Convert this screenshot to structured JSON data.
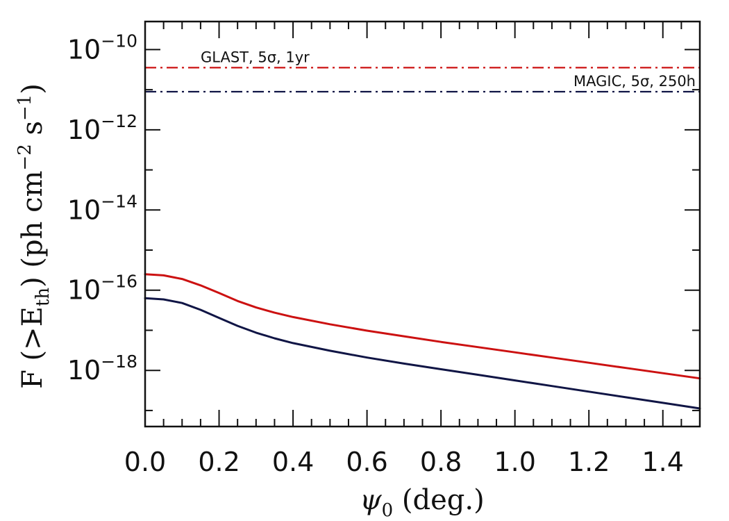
{
  "chart_data": {
    "type": "line",
    "title": "",
    "xlabel": "ψ₀ (deg.)",
    "ylabel": "F (>E_th) (ph cm⁻² s⁻¹)",
    "xlabel_parts": {
      "symbol": "ψ",
      "sub": "0",
      "rest": " (deg.)"
    },
    "ylabel_parts": {
      "pre": "F (>E",
      "sub": "th",
      "mid": ") (ph cm",
      "sup1": "−2",
      "mid2": " s",
      "sup2": "−1",
      "post": ")"
    },
    "x_scale": "linear",
    "y_scale": "log",
    "xlim": [
      0.0,
      1.5
    ],
    "ylim_log10": [
      -19.4,
      -9.3
    ],
    "x_ticks": [
      {
        "value": 0.0,
        "label": "0.0"
      },
      {
        "value": 0.2,
        "label": "0.2"
      },
      {
        "value": 0.4,
        "label": "0.4"
      },
      {
        "value": 0.6,
        "label": "0.6"
      },
      {
        "value": 0.8,
        "label": "0.8"
      },
      {
        "value": 1.0,
        "label": "1.0"
      },
      {
        "value": 1.2,
        "label": "1.2"
      },
      {
        "value": 1.4,
        "label": "1.4"
      }
    ],
    "y_ticks": [
      {
        "log10": -10,
        "base": "10",
        "exp": "−10"
      },
      {
        "log10": -12,
        "base": "10",
        "exp": "−12"
      },
      {
        "log10": -14,
        "base": "10",
        "exp": "−14"
      },
      {
        "log10": -16,
        "base": "10",
        "exp": "−16"
      },
      {
        "log10": -18,
        "base": "10",
        "exp": "−18"
      }
    ],
    "grid": false,
    "series": [
      {
        "style": "solid",
        "color": "#cc1111",
        "x": [
          0.0,
          0.05,
          0.1,
          0.15,
          0.2,
          0.25,
          0.3,
          0.35,
          0.4,
          0.5,
          0.6,
          0.7,
          0.8,
          0.9,
          1.0,
          1.1,
          1.2,
          1.3,
          1.4,
          1.5
        ],
        "y_log10": [
          -15.6,
          -15.63,
          -15.72,
          -15.88,
          -16.07,
          -16.27,
          -16.43,
          -16.56,
          -16.67,
          -16.85,
          -17.01,
          -17.15,
          -17.29,
          -17.42,
          -17.55,
          -17.68,
          -17.81,
          -17.94,
          -18.07,
          -18.2
        ]
      },
      {
        "style": "solid",
        "color": "#101545",
        "x": [
          0.0,
          0.05,
          0.1,
          0.15,
          0.2,
          0.25,
          0.3,
          0.35,
          0.4,
          0.5,
          0.6,
          0.7,
          0.8,
          0.9,
          1.0,
          1.1,
          1.2,
          1.3,
          1.4,
          1.5
        ],
        "y_log10": [
          -16.2,
          -16.23,
          -16.32,
          -16.49,
          -16.69,
          -16.89,
          -17.06,
          -17.2,
          -17.32,
          -17.51,
          -17.68,
          -17.83,
          -17.97,
          -18.11,
          -18.25,
          -18.39,
          -18.53,
          -18.67,
          -18.81,
          -18.95
        ]
      }
    ],
    "reference_lines": [
      {
        "label": "GLAST, 5σ, 1yr",
        "y_log10": -10.45,
        "color": "#cc1111",
        "style": "dash-dot",
        "label_align": "left"
      },
      {
        "label": "MAGIC, 5σ, 250h",
        "y_log10": -11.05,
        "color": "#101545",
        "style": "dash-dot",
        "label_align": "right"
      }
    ]
  }
}
